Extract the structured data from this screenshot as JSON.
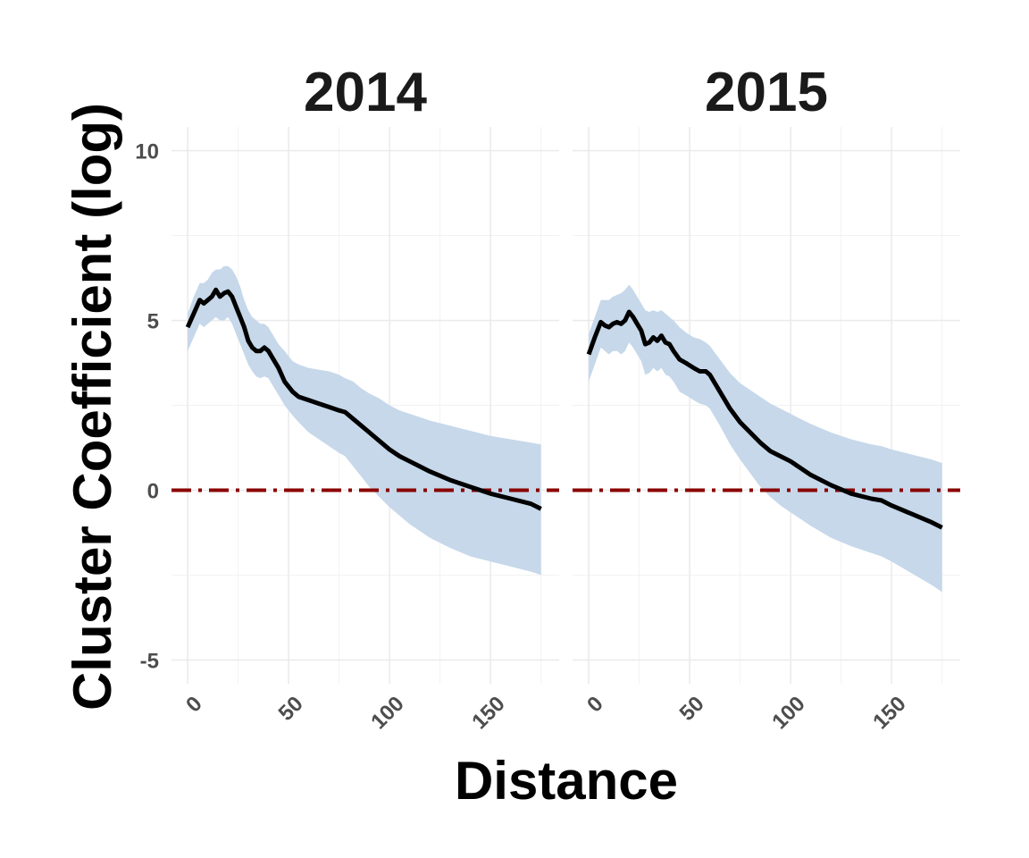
{
  "chart_data": {
    "type": "line",
    "ylabel": "Cluster Coefficient (log)",
    "xlabel": "Distance",
    "x_ticks": [
      0,
      50,
      100,
      150
    ],
    "y_ticks": [
      -5,
      0,
      5,
      10
    ],
    "xlim": [
      -8,
      184
    ],
    "ylim": [
      -5.7,
      10.7
    ],
    "grid": true,
    "reference_line": {
      "y": 0,
      "style": "dashdot",
      "color": "#8b0000"
    },
    "colors": {
      "ribbon": "#c6d8ea",
      "line": "#000000"
    },
    "panels": [
      {
        "title": "2014",
        "series": [
          {
            "x": [
              0,
              3,
              6,
              8,
              10,
              12,
              14,
              16,
              18,
              20,
              22,
              24,
              26,
              28,
              30,
              32,
              34,
              36,
              38,
              40,
              42,
              45,
              48,
              52,
              55,
              60,
              65,
              70,
              75,
              78,
              82,
              86,
              90,
              95,
              100,
              105,
              110,
              115,
              120,
              130,
              140,
              150,
              160,
              170,
              175
            ],
            "y": [
              4.8,
              5.2,
              5.6,
              5.5,
              5.6,
              5.7,
              5.9,
              5.7,
              5.8,
              5.85,
              5.7,
              5.4,
              5.1,
              4.8,
              4.4,
              4.2,
              4.1,
              4.1,
              4.2,
              4.1,
              3.9,
              3.6,
              3.2,
              2.9,
              2.75,
              2.65,
              2.55,
              2.45,
              2.35,
              2.3,
              2.1,
              1.9,
              1.7,
              1.45,
              1.2,
              1.0,
              0.85,
              0.7,
              0.55,
              0.3,
              0.1,
              -0.1,
              -0.25,
              -0.4,
              -0.55
            ],
            "upper": [
              5.2,
              5.7,
              6.1,
              6.1,
              6.2,
              6.4,
              6.5,
              6.5,
              6.6,
              6.6,
              6.5,
              6.3,
              6.0,
              5.6,
              5.3,
              5.1,
              5.0,
              4.9,
              4.9,
              4.8,
              4.6,
              4.3,
              4.1,
              3.8,
              3.7,
              3.6,
              3.55,
              3.5,
              3.4,
              3.3,
              3.2,
              3.0,
              2.85,
              2.7,
              2.5,
              2.35,
              2.25,
              2.15,
              2.05,
              1.9,
              1.75,
              1.6,
              1.5,
              1.4,
              1.35
            ],
            "lower": [
              4.1,
              4.5,
              4.9,
              4.8,
              4.9,
              5.0,
              5.1,
              5.0,
              5.0,
              5.1,
              4.9,
              4.6,
              4.3,
              4.0,
              3.7,
              3.5,
              3.35,
              3.3,
              3.35,
              3.3,
              3.1,
              2.8,
              2.5,
              2.2,
              2.0,
              1.7,
              1.5,
              1.3,
              1.1,
              1.0,
              0.7,
              0.4,
              0.1,
              -0.2,
              -0.5,
              -0.75,
              -1.0,
              -1.2,
              -1.4,
              -1.7,
              -1.95,
              -2.1,
              -2.25,
              -2.4,
              -2.5
            ]
          }
        ]
      },
      {
        "title": "2015",
        "series": [
          {
            "x": [
              0,
              3,
              6,
              8,
              10,
              12,
              14,
              16,
              18,
              20,
              22,
              24,
              26,
              28,
              30,
              32,
              34,
              36,
              38,
              40,
              42,
              45,
              48,
              52,
              55,
              58,
              60,
              65,
              70,
              75,
              80,
              85,
              90,
              95,
              100,
              105,
              110,
              120,
              130,
              140,
              145,
              150,
              160,
              170,
              175
            ],
            "y": [
              4.0,
              4.5,
              4.95,
              4.85,
              4.8,
              4.9,
              4.95,
              4.9,
              5.0,
              5.25,
              5.1,
              4.9,
              4.7,
              4.3,
              4.35,
              4.5,
              4.4,
              4.55,
              4.35,
              4.3,
              4.1,
              3.85,
              3.75,
              3.6,
              3.5,
              3.5,
              3.4,
              2.9,
              2.4,
              2.0,
              1.7,
              1.4,
              1.15,
              1.0,
              0.85,
              0.65,
              0.45,
              0.15,
              -0.1,
              -0.25,
              -0.3,
              -0.45,
              -0.7,
              -0.95,
              -1.1
            ],
            "upper": [
              4.6,
              5.1,
              5.6,
              5.6,
              5.6,
              5.7,
              5.75,
              5.8,
              5.9,
              6.05,
              5.9,
              5.7,
              5.5,
              5.3,
              5.25,
              5.3,
              5.25,
              5.3,
              5.2,
              5.1,
              5.0,
              4.8,
              4.65,
              4.5,
              4.45,
              4.35,
              4.25,
              3.85,
              3.45,
              3.15,
              2.95,
              2.75,
              2.55,
              2.4,
              2.25,
              2.1,
              1.95,
              1.7,
              1.5,
              1.35,
              1.3,
              1.2,
              1.05,
              0.9,
              0.8
            ],
            "lower": [
              3.2,
              3.7,
              4.2,
              4.1,
              4.0,
              4.1,
              4.1,
              4.0,
              4.1,
              4.35,
              4.2,
              4.0,
              3.8,
              3.4,
              3.45,
              3.6,
              3.5,
              3.6,
              3.4,
              3.35,
              3.2,
              2.9,
              2.8,
              2.65,
              2.55,
              2.5,
              2.4,
              1.9,
              1.35,
              0.9,
              0.5,
              0.1,
              -0.2,
              -0.45,
              -0.65,
              -0.85,
              -1.05,
              -1.4,
              -1.65,
              -1.85,
              -1.95,
              -2.1,
              -2.45,
              -2.8,
              -3.0
            ]
          }
        ]
      }
    ]
  }
}
